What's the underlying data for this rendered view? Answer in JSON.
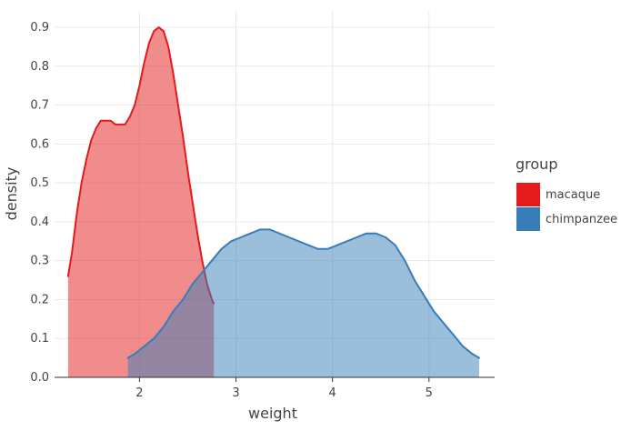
{
  "chart_data": {
    "type": "area",
    "xlabel": "weight",
    "ylabel": "density",
    "xlim": [
      1.12,
      5.68
    ],
    "ylim": [
      0.0,
      0.9
    ],
    "x_ticks": [
      2,
      3,
      4,
      5
    ],
    "y_ticks": [
      0.0,
      0.1,
      0.2,
      0.3,
      0.4,
      0.5,
      0.6,
      0.7,
      0.8,
      0.9
    ],
    "x_tick_labels": [
      "2",
      "3",
      "4",
      "5"
    ],
    "y_tick_labels": [
      "0.0",
      "0.1",
      "0.2",
      "0.3",
      "0.4",
      "0.5",
      "0.6",
      "0.7",
      "0.8",
      "0.9"
    ],
    "grid": true,
    "legend": {
      "title": "group",
      "placement": "right",
      "entries": [
        "macaque",
        "chimpanzee"
      ]
    },
    "series": [
      {
        "name": "macaque",
        "color": "#e41a1c",
        "fill": "#ee8a8b",
        "x": [
          1.26,
          1.3,
          1.35,
          1.4,
          1.45,
          1.5,
          1.55,
          1.6,
          1.65,
          1.7,
          1.75,
          1.8,
          1.85,
          1.9,
          1.95,
          2.0,
          2.05,
          2.1,
          2.15,
          2.2,
          2.25,
          2.3,
          2.35,
          2.4,
          2.45,
          2.5,
          2.55,
          2.6,
          2.65,
          2.7,
          2.75,
          2.77
        ],
        "y": [
          0.26,
          0.32,
          0.42,
          0.5,
          0.56,
          0.61,
          0.64,
          0.66,
          0.66,
          0.66,
          0.65,
          0.65,
          0.65,
          0.67,
          0.7,
          0.75,
          0.81,
          0.86,
          0.89,
          0.9,
          0.89,
          0.85,
          0.78,
          0.7,
          0.62,
          0.53,
          0.45,
          0.37,
          0.3,
          0.24,
          0.2,
          0.19
        ]
      },
      {
        "name": "chimpanzee",
        "color": "#377eb8",
        "fill": "#9bbbd9",
        "x": [
          1.88,
          1.95,
          2.05,
          2.15,
          2.25,
          2.35,
          2.45,
          2.55,
          2.65,
          2.75,
          2.85,
          2.95,
          3.05,
          3.15,
          3.25,
          3.35,
          3.45,
          3.55,
          3.65,
          3.75,
          3.85,
          3.95,
          4.05,
          4.15,
          4.25,
          4.35,
          4.45,
          4.55,
          4.65,
          4.75,
          4.85,
          4.95,
          5.05,
          5.15,
          5.25,
          5.35,
          5.45,
          5.52
        ],
        "y": [
          0.05,
          0.06,
          0.08,
          0.1,
          0.13,
          0.17,
          0.2,
          0.24,
          0.27,
          0.3,
          0.33,
          0.35,
          0.36,
          0.37,
          0.38,
          0.38,
          0.37,
          0.36,
          0.35,
          0.34,
          0.33,
          0.33,
          0.34,
          0.35,
          0.36,
          0.37,
          0.37,
          0.36,
          0.34,
          0.3,
          0.25,
          0.21,
          0.17,
          0.14,
          0.11,
          0.08,
          0.06,
          0.05
        ]
      }
    ]
  }
}
